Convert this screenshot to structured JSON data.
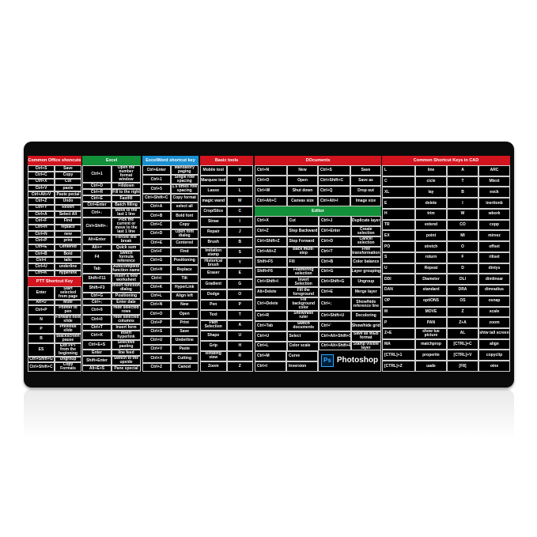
{
  "colors": {
    "red": "#d2141e",
    "green": "#12903a",
    "blue": "#1a8fd0",
    "pad": "#0b0b0b"
  },
  "office": {
    "title": "Common Office shoncuts",
    "rows": [
      [
        "Ctrl+S",
        "Save"
      ],
      [
        "Ctrl+C",
        "Copy"
      ],
      [
        "Ctrl+X",
        "Cut"
      ],
      [
        "Ctrl+V",
        "paste"
      ],
      [
        "Ctrl+Alt+V",
        "Paste pecial"
      ],
      [
        "Ctrl+Z",
        "Undo"
      ],
      [
        "Ctrl+Y",
        "Revert"
      ],
      [
        "Ctrl+A",
        "Select All"
      ],
      [
        "Ctrl+F",
        "Find"
      ],
      [
        "Ctrl+H",
        "replace"
      ],
      [
        "Ctrl+N",
        "new"
      ],
      [
        "Ctrl+P",
        "print"
      ],
      [
        "Ctrl+E",
        "Centered"
      ],
      [
        "Ctrl+B",
        "Bold"
      ],
      [
        "Ctrl+I",
        "talic"
      ],
      [
        "Ctrl+U",
        "underline"
      ],
      [
        "Ctrl+K",
        "hyperlink"
      ]
    ]
  },
  "ppt": {
    "title": "PTT Shortcut Key",
    "rows": [
      [
        "Enter",
        "Start selected from page"
      ],
      [
        "Alt+U",
        "Mute"
      ],
      [
        "Ctrl+P",
        "Pointer to pen"
      ],
      [
        "N",
        "Forward next slide"
      ],
      [
        "P",
        "Previous slide"
      ],
      [
        "B",
        "Blackscreen pause"
      ],
      [
        "ES",
        "Exit PPT from the beginning"
      ],
      [
        "Ctrl+Shift+G",
        "Ungroup"
      ],
      [
        "Ctrl+Shift+C",
        "Copy Formats"
      ]
    ]
  },
  "excel": {
    "title": "Excel",
    "rows": [
      [
        "Ctrl+1",
        "Open the number format window"
      ],
      [
        "Ctrl+D",
        "Filldown"
      ],
      [
        "Ctrl+R",
        "Fill to the right"
      ],
      [
        "Ctrl+E",
        "Fastfill"
      ],
      [
        "Ctrl+Enter",
        "Batch filling"
      ],
      [
        "Ctrl+↓",
        "Move to the last 1 line"
      ],
      [
        "Ctrl+Shift+↓",
        "Pick the current or move to the last 1 line"
      ],
      [
        "Alt+Enter",
        "Forced line break"
      ],
      [
        "Alt+=",
        "Quick sum"
      ],
      [
        "F4",
        "Switch formula reference"
      ],
      [
        "Tab",
        "Autocomplete function name"
      ],
      [
        "Shift+F11",
        "Insert a new worksheet"
      ],
      [
        "Shift+F3",
        "Insert function dialog"
      ],
      [
        "Ctrl+G",
        "Positioning"
      ],
      [
        "Ctrl+;",
        "Enter date"
      ],
      [
        "Ctrl+9",
        "Hide selected rows"
      ],
      [
        "Ctrl+0",
        "Hide selected columns"
      ],
      [
        "Ctrl+T",
        "Insert form"
      ],
      [
        "Ctrl+K",
        "Insert hyperlink"
      ],
      [
        "Ctrl+E+S",
        "Selective pasting"
      ],
      [
        "Enter",
        "line feed"
      ],
      [
        "Shift+Enter",
        "Switch to the upside"
      ],
      [
        "Alt+E+S",
        "Pane special"
      ]
    ]
  },
  "word": {
    "title": "ExcelWord shortcut key",
    "rows": [
      [
        "Ctrl+Enter",
        "Mandatory paging"
      ],
      [
        "Ctrl+1",
        "Single row spacing"
      ],
      [
        "Ctrl+5",
        "1.5 times row spacing"
      ],
      [
        "Ctrl+Shift+C",
        "Copy format"
      ],
      [
        "Ctrl+A",
        "select all"
      ],
      [
        "Ctrl+B",
        "Bold font"
      ],
      [
        "Ctrl+C",
        "Copy"
      ],
      [
        "Ctrl+D",
        "Open font dialog"
      ],
      [
        "Ctrl+E",
        "Centered"
      ],
      [
        "Ctrl+F",
        "Find"
      ],
      [
        "Ctrl+G",
        "Positioning"
      ],
      [
        "Ctrl+H",
        "Replace"
      ],
      [
        "Ctrl+I",
        "Tilt"
      ],
      [
        "Ctrl+K",
        "HyperLink"
      ],
      [
        "Ctrl+L",
        "Align left"
      ],
      [
        "Ctrl+N",
        "New"
      ],
      [
        "Ctrl+O",
        "Open"
      ],
      [
        "Ctrl+P",
        "Print"
      ],
      [
        "Ctrl+S",
        "Save"
      ],
      [
        "Ctrl+U",
        "Underline"
      ],
      [
        "Ctrl+V",
        "Paste"
      ],
      [
        "Ctrl+X",
        "Cutting"
      ],
      [
        "Ctrl+Z",
        "Cancel"
      ]
    ]
  },
  "basic": {
    "title": "Basic tools",
    "rows": [
      [
        "Mobile tool",
        "V"
      ],
      [
        "Marquee tool",
        "M"
      ],
      [
        "Lasso",
        "L"
      ],
      [
        "magic wand",
        "W"
      ],
      [
        "Crop/Slice",
        "C"
      ],
      [
        "Straw",
        "I"
      ],
      [
        "Repair",
        "J"
      ],
      [
        "Brush",
        "B"
      ],
      [
        "Imitation stamp",
        "S"
      ],
      [
        "Historical brush",
        "Y"
      ],
      [
        "Eraser",
        "E"
      ],
      [
        "Gradient",
        "G"
      ],
      [
        "Dodge",
        "O"
      ],
      [
        "Pen",
        "P"
      ],
      [
        "Text",
        "T"
      ],
      [
        "Path Selection",
        "A"
      ],
      [
        "Shape",
        "U"
      ],
      [
        "Grip",
        "H"
      ],
      [
        "Rotating view",
        "R"
      ],
      [
        "Zoom",
        "Z"
      ]
    ]
  },
  "documents": {
    "title": "DOcuments",
    "rows": [
      [
        "Ctrl+N",
        "New",
        "Ctrl+S",
        "Save"
      ],
      [
        "Ctrl+O",
        "Open",
        "Ctrl+Shift+C",
        "Save as"
      ],
      [
        "Ctrl+W",
        "Shut down",
        "Ctrl+Q",
        "Drop out"
      ],
      [
        "Ctrl+Alt+C",
        "Canvas size",
        "Ctrl+Alt+I",
        "Image size"
      ]
    ]
  },
  "editor": {
    "title": "Editor",
    "rows": [
      [
        "Ctrl+X",
        "Cut",
        "Ctrl+J",
        "Duplicate layer"
      ],
      [
        "Ctrl+Z",
        "Step Backward",
        "Ctrl+Enter",
        "Create selection"
      ],
      [
        "Ctrl+Shift+Z",
        "Step Forward",
        "Ctrl+D",
        "Cancel selection"
      ],
      [
        "Ctrl+Alt+Z",
        "Back multi-step",
        "Ctrl+T",
        "Free transformation"
      ],
      [
        "Shift+F5",
        "Fill",
        "Ctrl+B",
        "Color balance"
      ],
      [
        "Shift+F6",
        "Feathering selection",
        "Ctrl+G",
        "Layer grouping"
      ],
      [
        "Ctrl+Shift+I",
        "Invert Selection",
        "Ctrl+Shift+G",
        "Ungroup"
      ],
      [
        "Alt+Delete",
        "Fill the foreground",
        "Ctrl+E",
        "Merge layer"
      ],
      [
        "Ctrl+Delete",
        "Fill background color",
        "Ctrl+;",
        "Show/hide reference line"
      ],
      [
        "Ctrl+R",
        "Show/hide ruler",
        "Ctrl+Shift+U",
        "Decoloring"
      ],
      [
        "Ctrl+Tab",
        "Switch documents",
        "Ctrl+'",
        "Show/hide grid"
      ],
      [
        "Ctrl+U",
        "Select",
        "Ctrl+Alt+Shift+S",
        "Save as WEB format"
      ],
      [
        "Ctrl+L",
        "Color scale",
        "Ctrl+Alt+Shift+E",
        "Stamp visible layer"
      ],
      [
        "Ctrl+M",
        "Curve"
      ],
      [
        "Ctrl+I",
        "Inversion"
      ]
    ],
    "logo_icon": "Ps",
    "logo_text": "Photoshop"
  },
  "cad": {
    "title": "Common Shortcut Keys in CAD",
    "rows": [
      [
        "L",
        "line",
        "A",
        "ARC"
      ],
      [
        "C",
        "cicle",
        "T",
        "Mtext"
      ],
      [
        "XL",
        "lay",
        "B",
        "eock"
      ],
      [
        "E",
        "delete",
        "I",
        "inertionb"
      ],
      [
        "H",
        "trim",
        "W",
        "wbork"
      ],
      [
        "TR",
        "extend",
        "CO",
        "copp"
      ],
      [
        "EX",
        "point",
        "MI",
        "mireez"
      ],
      [
        "PO",
        "stretch",
        "O",
        "offset"
      ],
      [
        "S",
        "roturn",
        "F",
        "riliset"
      ],
      [
        "U",
        "Repeat",
        "D",
        "dintys"
      ],
      [
        "DDI",
        "Diameter",
        "DLI",
        "dimlinear"
      ],
      [
        "DAN",
        "standard",
        "DRA",
        "dimradius"
      ],
      [
        "OP",
        "optiONS",
        "OS",
        "osnap"
      ],
      [
        "M",
        "MOVE",
        "Z",
        "scale"
      ],
      [
        "P",
        "PAN",
        "Z+A",
        "zoom"
      ],
      [
        "Z+E",
        "show tue picture",
        "AL",
        "shtw tall screen"
      ],
      [
        "MA",
        "matchprop",
        "[CTRL]+C",
        "align"
      ],
      [
        "[CTRL]+1",
        "properite",
        "[CTRL]+V",
        "copyclip"
      ],
      [
        "[CTRL]+Z",
        "uade",
        "[F8]",
        "oine"
      ]
    ]
  }
}
